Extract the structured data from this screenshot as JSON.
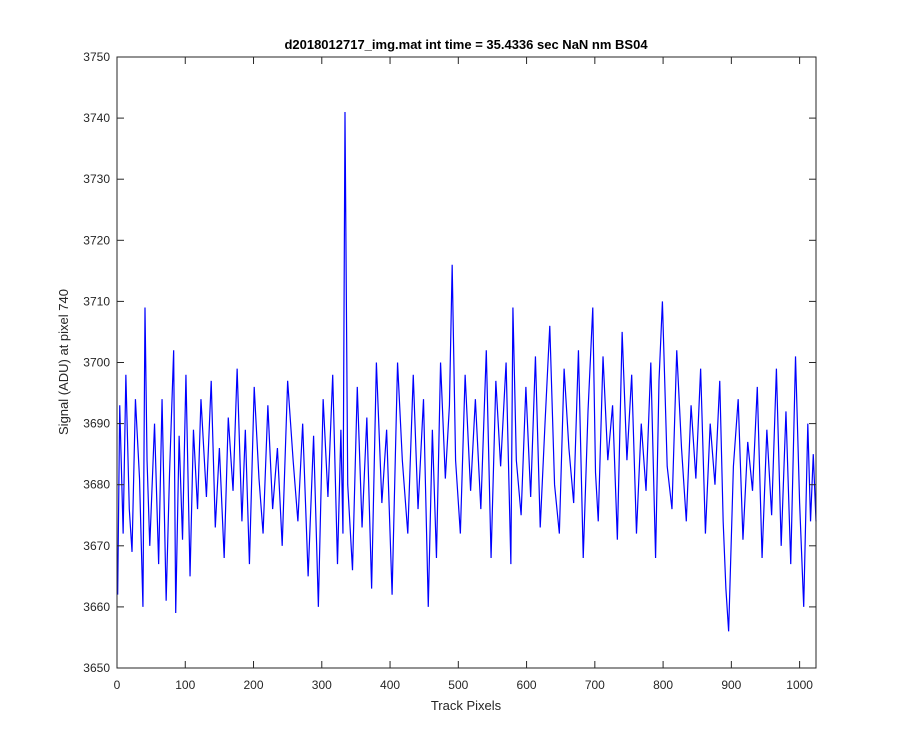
{
  "chart_data": {
    "type": "line",
    "title": "d2018012717_img.mat int time = 35.4336 sec  NaN nm BS04",
    "xlabel": "Track Pixels",
    "ylabel": "Signal (ADU) at pixel 740",
    "xlim": [
      0,
      1024
    ],
    "ylim": [
      3650,
      3750
    ],
    "xticks": [
      0,
      100,
      200,
      300,
      400,
      500,
      600,
      700,
      800,
      900,
      1000
    ],
    "yticks": [
      3650,
      3660,
      3670,
      3680,
      3690,
      3700,
      3710,
      3720,
      3730,
      3740,
      3750
    ],
    "grid": false,
    "line_color": "#0000ff",
    "axis_color": "#262626",
    "series": [
      {
        "x": [
          1,
          4,
          9,
          13,
          18,
          22,
          27,
          33,
          38,
          41,
          44,
          48,
          55,
          61,
          66,
          72,
          77,
          83,
          86,
          91,
          96,
          101,
          107,
          112,
          118,
          123,
          131,
          138,
          144,
          150,
          157,
          163,
          170,
          176,
          183,
          188,
          194,
          201,
          208,
          214,
          221,
          228,
          235,
          242,
          250,
          258,
          265,
          272,
          280,
          288,
          295,
          302,
          309,
          316,
          323,
          328,
          331,
          334,
          338,
          345,
          352,
          359,
          366,
          373,
          380,
          388,
          395,
          403,
          411,
          418,
          426,
          434,
          441,
          449,
          456,
          462,
          468,
          474,
          481,
          487,
          491,
          496,
          503,
          510,
          518,
          525,
          533,
          541,
          548,
          555,
          562,
          570,
          577,
          580,
          585,
          592,
          599,
          606,
          613,
          620,
          627,
          634,
          641,
          648,
          655,
          662,
          669,
          676,
          683,
          690,
          697,
          701,
          705,
          712,
          719,
          726,
          733,
          740,
          747,
          754,
          761,
          768,
          775,
          782,
          789,
          794,
          799,
          806,
          813,
          820,
          827,
          834,
          841,
          848,
          855,
          862,
          869,
          876,
          883,
          888,
          892,
          896,
          903,
          910,
          917,
          924,
          931,
          938,
          945,
          952,
          959,
          966,
          973,
          980,
          987,
          994,
          1000,
          1006,
          1012,
          1016,
          1020,
          1024
        ],
        "y": [
          3662,
          3693,
          3672,
          3698,
          3676,
          3669,
          3694,
          3681,
          3660,
          3709,
          3684,
          3670,
          3690,
          3667,
          3694,
          3661,
          3682,
          3702,
          3659,
          3688,
          3671,
          3698,
          3665,
          3689,
          3676,
          3694,
          3678,
          3697,
          3673,
          3686,
          3668,
          3691,
          3679,
          3699,
          3674,
          3689,
          3667,
          3696,
          3681,
          3672,
          3693,
          3676,
          3686,
          3670,
          3697,
          3684,
          3674,
          3690,
          3665,
          3688,
          3660,
          3694,
          3678,
          3698,
          3667,
          3689,
          3672,
          3741,
          3680,
          3666,
          3696,
          3673,
          3691,
          3663,
          3700,
          3677,
          3689,
          3662,
          3700,
          3684,
          3672,
          3698,
          3676,
          3694,
          3660,
          3689,
          3668,
          3700,
          3681,
          3693,
          3716,
          3684,
          3672,
          3698,
          3679,
          3694,
          3676,
          3702,
          3668,
          3697,
          3683,
          3700,
          3667,
          3709,
          3684,
          3675,
          3696,
          3678,
          3701,
          3673,
          3690,
          3706,
          3680,
          3672,
          3699,
          3686,
          3677,
          3702,
          3668,
          3692,
          3709,
          3682,
          3674,
          3701,
          3684,
          3693,
          3671,
          3705,
          3684,
          3698,
          3672,
          3690,
          3679,
          3700,
          3668,
          3697,
          3710,
          3683,
          3676,
          3702,
          3686,
          3674,
          3693,
          3681,
          3699,
          3672,
          3690,
          3680,
          3697,
          3674,
          3663,
          3656,
          3683,
          3694,
          3671,
          3687,
          3679,
          3696,
          3668,
          3689,
          3675,
          3699,
          3670,
          3692,
          3667,
          3701,
          3677,
          3660,
          3690,
          3674,
          3685,
          3674
        ]
      }
    ]
  }
}
